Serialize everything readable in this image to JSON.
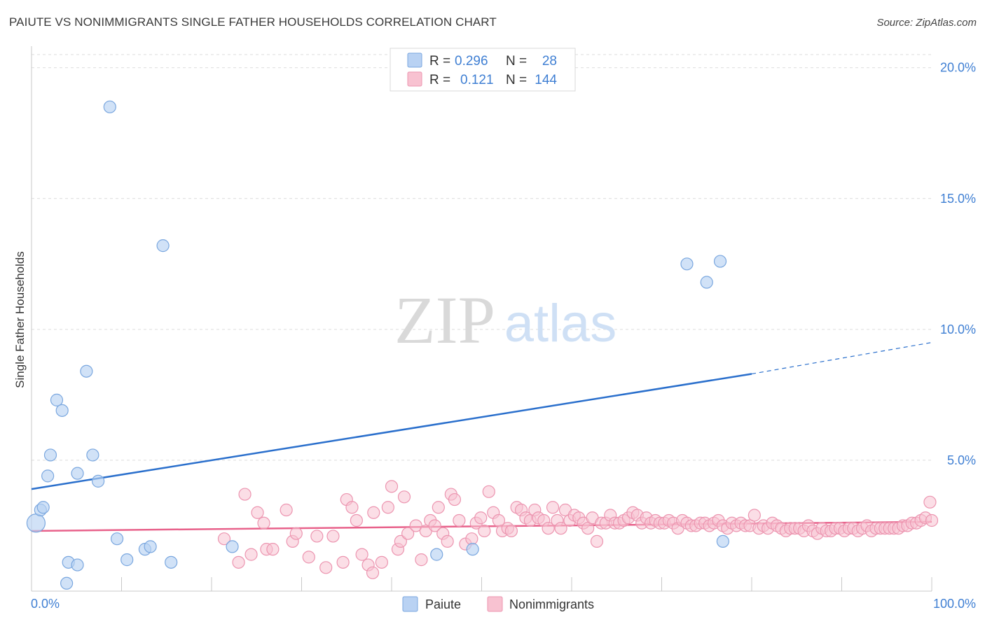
{
  "title": "PAIUTE VS NONIMMIGRANTS SINGLE FATHER HOUSEHOLDS CORRELATION CHART",
  "source": "Source: ZipAtlas.com",
  "watermark": {
    "zip": "ZIP",
    "atlas": "atlas"
  },
  "colors": {
    "paiute_fill": "#b9d2f3",
    "paiute_stroke": "#7aa7df",
    "paiute_line": "#2a6fcc",
    "nonimm_fill": "#f8c2d1",
    "nonimm_stroke": "#ec95b0",
    "nonimm_line": "#e8628b",
    "tick_text": "#3f7fd3",
    "grid": "#dcdcdc"
  },
  "legend": {
    "rows": [
      {
        "r_label": "R =",
        "r_value": "0.296",
        "n_label": "N =",
        "n_value": "28"
      },
      {
        "r_label": "R =",
        "r_value": "0.121",
        "n_label": "N =",
        "n_value": "144"
      }
    ]
  },
  "bottom_legend": {
    "paiute": "Paiute",
    "nonimmigrants": "Nonimmigrants"
  },
  "chart_data": {
    "type": "scatter",
    "title": "PAIUTE VS NONIMMIGRANTS SINGLE FATHER HOUSEHOLDS CORRELATION CHART",
    "xlabel": "",
    "ylabel": "Single Father Households",
    "xlim": [
      0,
      100
    ],
    "ylim": [
      0,
      20.5
    ],
    "x_tick_labels": [
      "0.0%",
      "100.0%"
    ],
    "y_ticks": [
      5,
      10,
      15,
      20
    ],
    "y_tick_labels": [
      "5.0%",
      "10.0%",
      "15.0%",
      "20.0%"
    ],
    "grid": true,
    "legend_placement": "top-center",
    "series": [
      {
        "name": "Paiute",
        "points": [
          [
            0.5,
            2.6
          ],
          [
            1.0,
            3.1
          ],
          [
            1.3,
            3.2
          ],
          [
            1.8,
            4.4
          ],
          [
            2.1,
            5.2
          ],
          [
            2.8,
            7.3
          ],
          [
            3.4,
            6.9
          ],
          [
            3.9,
            0.3
          ],
          [
            4.1,
            1.1
          ],
          [
            5.1,
            1.0
          ],
          [
            5.1,
            4.5
          ],
          [
            6.1,
            8.4
          ],
          [
            6.8,
            5.2
          ],
          [
            7.4,
            4.2
          ],
          [
            8.7,
            18.5
          ],
          [
            9.5,
            2.0
          ],
          [
            10.6,
            1.2
          ],
          [
            12.6,
            1.6
          ],
          [
            13.2,
            1.7
          ],
          [
            14.6,
            13.2
          ],
          [
            15.5,
            1.1
          ],
          [
            22.3,
            1.7
          ],
          [
            45.0,
            1.4
          ],
          [
            49.0,
            1.6
          ],
          [
            72.8,
            12.5
          ],
          [
            75.0,
            11.8
          ],
          [
            76.5,
            12.6
          ],
          [
            76.8,
            1.9
          ]
        ],
        "trend": {
          "x": [
            0,
            80
          ],
          "y": [
            3.9,
            8.3
          ],
          "dashed_x": [
            80,
            100
          ],
          "dashed_y": [
            8.3,
            9.5
          ]
        }
      },
      {
        "name": "Nonimmigrants",
        "points": [
          [
            21.4,
            2.0
          ],
          [
            23.0,
            1.1
          ],
          [
            23.7,
            3.7
          ],
          [
            24.4,
            1.4
          ],
          [
            25.1,
            3.0
          ],
          [
            25.8,
            2.6
          ],
          [
            26.1,
            1.6
          ],
          [
            26.8,
            1.6
          ],
          [
            28.3,
            3.1
          ],
          [
            29.0,
            1.9
          ],
          [
            29.4,
            2.2
          ],
          [
            30.8,
            1.3
          ],
          [
            31.7,
            2.1
          ],
          [
            32.7,
            0.9
          ],
          [
            33.5,
            2.1
          ],
          [
            34.6,
            1.1
          ],
          [
            35.0,
            3.5
          ],
          [
            35.6,
            3.2
          ],
          [
            36.1,
            2.7
          ],
          [
            36.7,
            1.4
          ],
          [
            37.4,
            1.0
          ],
          [
            37.9,
            0.7
          ],
          [
            38.0,
            3.0
          ],
          [
            38.9,
            1.1
          ],
          [
            39.6,
            3.2
          ],
          [
            40.0,
            4.0
          ],
          [
            40.7,
            1.6
          ],
          [
            41.0,
            1.9
          ],
          [
            41.4,
            3.6
          ],
          [
            41.8,
            2.2
          ],
          [
            42.7,
            2.5
          ],
          [
            43.3,
            1.2
          ],
          [
            43.8,
            2.3
          ],
          [
            44.3,
            2.7
          ],
          [
            44.8,
            2.5
          ],
          [
            45.2,
            3.2
          ],
          [
            45.7,
            2.2
          ],
          [
            46.2,
            1.9
          ],
          [
            46.6,
            3.7
          ],
          [
            47.0,
            3.5
          ],
          [
            47.5,
            2.7
          ],
          [
            48.2,
            1.8
          ],
          [
            48.9,
            2.0
          ],
          [
            49.4,
            2.6
          ],
          [
            49.9,
            2.8
          ],
          [
            50.3,
            2.3
          ],
          [
            50.8,
            3.8
          ],
          [
            51.3,
            3.0
          ],
          [
            51.9,
            2.7
          ],
          [
            52.3,
            2.3
          ],
          [
            52.9,
            2.4
          ],
          [
            53.3,
            2.3
          ],
          [
            53.9,
            3.2
          ],
          [
            54.4,
            3.1
          ],
          [
            54.9,
            2.8
          ],
          [
            55.4,
            2.7
          ],
          [
            55.9,
            3.1
          ],
          [
            56.3,
            2.8
          ],
          [
            56.9,
            2.7
          ],
          [
            57.4,
            2.4
          ],
          [
            57.9,
            3.2
          ],
          [
            58.4,
            2.7
          ],
          [
            58.8,
            2.4
          ],
          [
            59.3,
            3.1
          ],
          [
            59.8,
            2.7
          ],
          [
            60.3,
            2.9
          ],
          [
            60.8,
            2.8
          ],
          [
            61.3,
            2.6
          ],
          [
            61.8,
            2.4
          ],
          [
            62.3,
            2.8
          ],
          [
            62.8,
            1.9
          ],
          [
            63.3,
            2.6
          ],
          [
            63.8,
            2.6
          ],
          [
            64.3,
            2.9
          ],
          [
            64.8,
            2.6
          ],
          [
            65.3,
            2.6
          ],
          [
            65.8,
            2.7
          ],
          [
            66.3,
            2.8
          ],
          [
            66.8,
            3.0
          ],
          [
            67.3,
            2.9
          ],
          [
            67.8,
            2.6
          ],
          [
            68.3,
            2.8
          ],
          [
            68.8,
            2.6
          ],
          [
            69.3,
            2.7
          ],
          [
            69.8,
            2.6
          ],
          [
            70.3,
            2.6
          ],
          [
            70.8,
            2.7
          ],
          [
            71.3,
            2.6
          ],
          [
            71.8,
            2.4
          ],
          [
            72.3,
            2.7
          ],
          [
            72.8,
            2.6
          ],
          [
            73.3,
            2.5
          ],
          [
            73.8,
            2.5
          ],
          [
            74.3,
            2.6
          ],
          [
            74.8,
            2.6
          ],
          [
            75.3,
            2.5
          ],
          [
            75.8,
            2.6
          ],
          [
            76.3,
            2.7
          ],
          [
            76.8,
            2.5
          ],
          [
            77.3,
            2.4
          ],
          [
            77.8,
            2.6
          ],
          [
            78.3,
            2.5
          ],
          [
            78.8,
            2.6
          ],
          [
            79.3,
            2.5
          ],
          [
            79.8,
            2.5
          ],
          [
            80.3,
            2.9
          ],
          [
            80.8,
            2.4
          ],
          [
            81.3,
            2.5
          ],
          [
            81.8,
            2.4
          ],
          [
            82.3,
            2.6
          ],
          [
            82.8,
            2.5
          ],
          [
            83.3,
            2.4
          ],
          [
            83.8,
            2.3
          ],
          [
            84.3,
            2.4
          ],
          [
            84.8,
            2.4
          ],
          [
            85.3,
            2.4
          ],
          [
            85.8,
            2.3
          ],
          [
            86.3,
            2.5
          ],
          [
            86.8,
            2.3
          ],
          [
            87.3,
            2.2
          ],
          [
            87.8,
            2.4
          ],
          [
            88.3,
            2.3
          ],
          [
            88.8,
            2.3
          ],
          [
            89.3,
            2.4
          ],
          [
            89.8,
            2.4
          ],
          [
            90.3,
            2.3
          ],
          [
            90.8,
            2.4
          ],
          [
            91.3,
            2.4
          ],
          [
            91.8,
            2.3
          ],
          [
            92.3,
            2.4
          ],
          [
            92.8,
            2.5
          ],
          [
            93.3,
            2.3
          ],
          [
            93.8,
            2.4
          ],
          [
            94.3,
            2.4
          ],
          [
            94.8,
            2.4
          ],
          [
            95.3,
            2.4
          ],
          [
            95.8,
            2.4
          ],
          [
            96.3,
            2.4
          ],
          [
            96.8,
            2.5
          ],
          [
            97.3,
            2.5
          ],
          [
            97.8,
            2.6
          ],
          [
            98.3,
            2.6
          ],
          [
            98.8,
            2.7
          ],
          [
            99.3,
            2.8
          ],
          [
            99.8,
            3.4
          ],
          [
            100.0,
            2.7
          ]
        ],
        "trend": {
          "x": [
            0,
            100
          ],
          "y": [
            2.3,
            2.65
          ]
        }
      }
    ]
  }
}
